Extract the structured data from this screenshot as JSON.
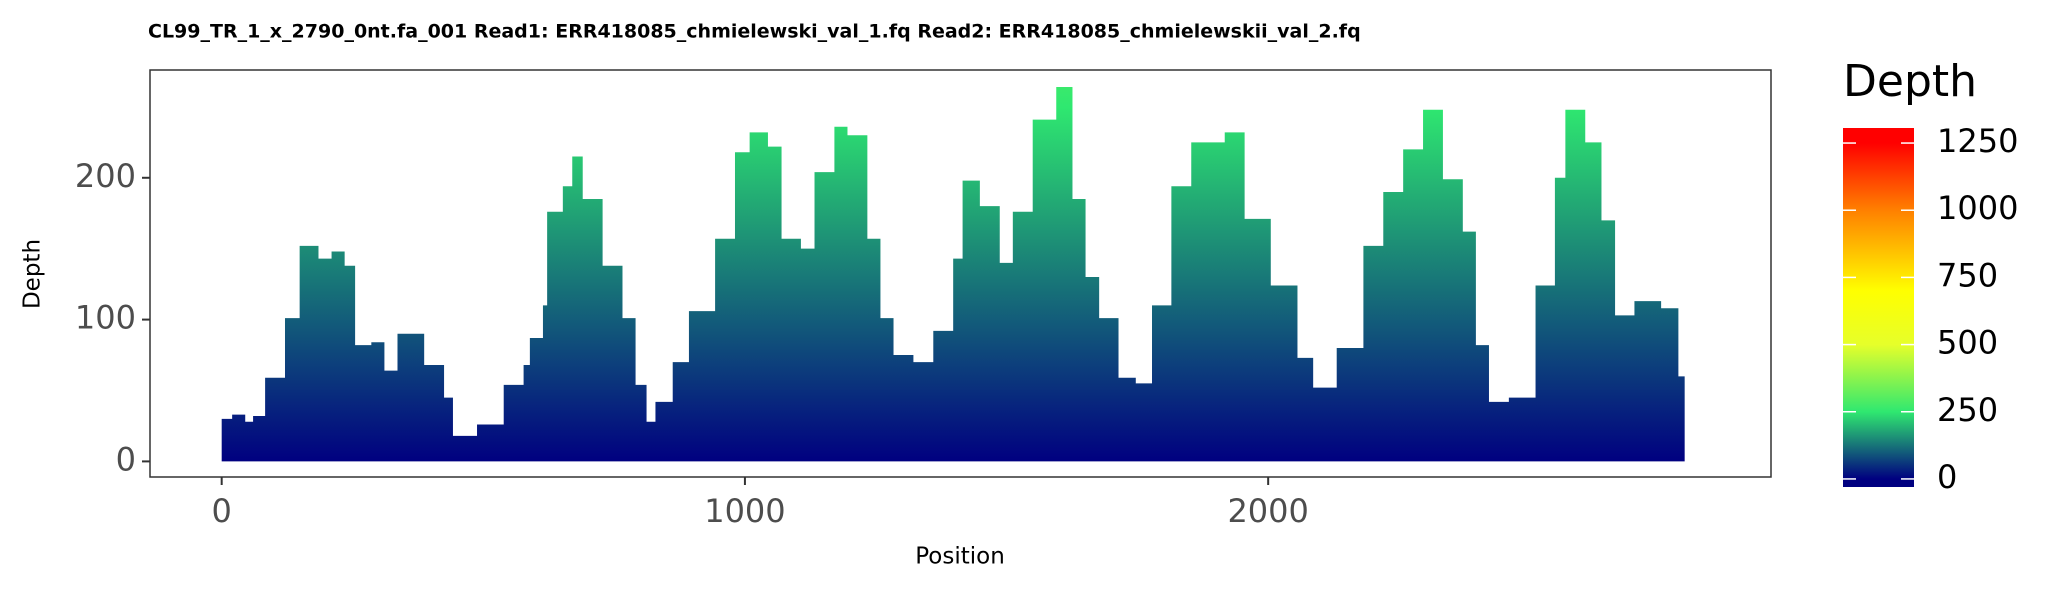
{
  "chart_data": {
    "type": "area",
    "title": "CL99_TR_1_x_2790_0nt.fa_001   Read1: ERR418085_chmielewski_val_1.fq   Read2: ERR418085_chmielewskii_val_2.fq",
    "x_label": "Position",
    "y_label": "Depth",
    "x": [
      0,
      20,
      45,
      60,
      83,
      121,
      149,
      185,
      210,
      235,
      255,
      286,
      311,
      336,
      387,
      425,
      442,
      488,
      539,
      577,
      589,
      614,
      622,
      652,
      670,
      690,
      728,
      766,
      791,
      812,
      829,
      855,
      862,
      893,
      943,
      981,
      1009,
      1044,
      1070,
      1107,
      1133,
      1171,
      1196,
      1234,
      1259,
      1284,
      1322,
      1360,
      1398,
      1416,
      1449,
      1487,
      1512,
      1550,
      1595,
      1626,
      1651,
      1677,
      1714,
      1747,
      1778,
      1815,
      1853,
      1917,
      1955,
      2005,
      2056,
      2086,
      2131,
      2182,
      2220,
      2258,
      2296,
      2334,
      2372,
      2397,
      2422,
      2460,
      2511,
      2548,
      2568,
      2606,
      2637,
      2663,
      2700,
      2751,
      2784,
      2796
    ],
    "series": [
      {
        "name": "Depth",
        "values": [
          30,
          33,
          28,
          32,
          59,
          101,
          152,
          143,
          148,
          138,
          82,
          84,
          64,
          90,
          68,
          45,
          18,
          26,
          54,
          68,
          87,
          110,
          176,
          194,
          215,
          185,
          138,
          101,
          54,
          28,
          42,
          42,
          70,
          106,
          157,
          218,
          232,
          222,
          157,
          150,
          204,
          236,
          230,
          157,
          101,
          75,
          70,
          92,
          143,
          198,
          180,
          140,
          176,
          241,
          264,
          185,
          130,
          101,
          59,
          55,
          110,
          194,
          225,
          232,
          171,
          124,
          73,
          52,
          80,
          152,
          190,
          220,
          248,
          199,
          162,
          82,
          42,
          45,
          124,
          200,
          248,
          225,
          170,
          103,
          113,
          108,
          60,
          10
        ]
      }
    ],
    "xlim": [
      -137,
      2961
    ],
    "ylim": [
      -11,
      276
    ],
    "xticks": [
      0,
      1000,
      2000
    ],
    "yticks": [
      0,
      100,
      200
    ],
    "grid": false,
    "legend": {
      "title": "Depth",
      "clim": [
        -30,
        1306
      ],
      "ticks": [
        0,
        250,
        500,
        750,
        1000,
        1250
      ],
      "colorscale": [
        [
          0,
          "#000080"
        ],
        [
          250,
          "#2fe870"
        ],
        [
          500,
          "#e6ff2a"
        ],
        [
          700,
          "#ffff00"
        ],
        [
          1000,
          "#ff8000"
        ],
        [
          1250,
          "#ff0000"
        ]
      ]
    }
  }
}
